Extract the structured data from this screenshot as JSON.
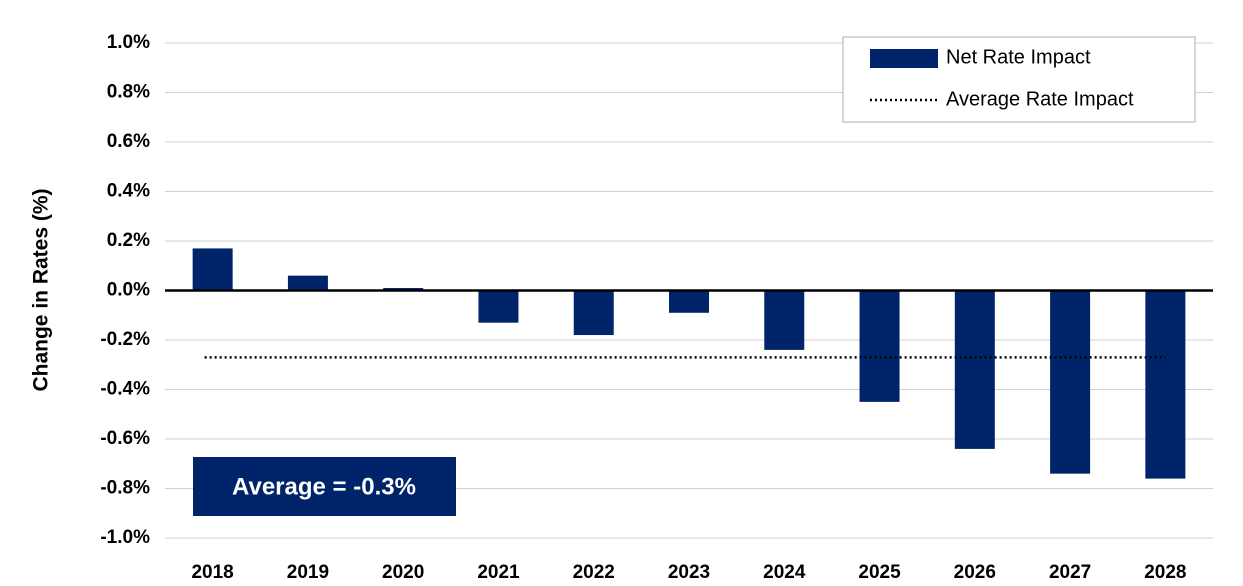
{
  "chart_data": {
    "type": "bar",
    "y_label": "Change in Rates (%)",
    "categories": [
      "2018",
      "2019",
      "2020",
      "2021",
      "2022",
      "2023",
      "2024",
      "2025",
      "2026",
      "2027",
      "2028"
    ],
    "series": [
      {
        "name": "Net Rate Impact",
        "color": "#002469",
        "values": [
          0.17,
          0.06,
          0.01,
          -0.13,
          -0.18,
          -0.09,
          -0.24,
          -0.45,
          -0.64,
          -0.74,
          -0.76
        ]
      }
    ],
    "reference_line": {
      "name": "Average Rate Impact",
      "value": -0.27,
      "color": "#000000"
    },
    "annotation": "Average = -0.3%",
    "ylim": [
      -1.0,
      1.0
    ],
    "yticks": [
      {
        "value": -1.0,
        "label": "-1.0%"
      },
      {
        "value": -0.8,
        "label": "-0.8%"
      },
      {
        "value": -0.6,
        "label": "-0.6%"
      },
      {
        "value": -0.4,
        "label": "-0.4%"
      },
      {
        "value": -0.2,
        "label": "-0.2%"
      },
      {
        "value": 0.0,
        "label": "0.0%"
      },
      {
        "value": 0.2,
        "label": "0.2%"
      },
      {
        "value": 0.4,
        "label": "0.4%"
      },
      {
        "value": 0.6,
        "label": "0.6%"
      },
      {
        "value": 0.8,
        "label": "0.8%"
      },
      {
        "value": 1.0,
        "label": "1.0%"
      }
    ],
    "grid": true,
    "legend": "upper right"
  }
}
